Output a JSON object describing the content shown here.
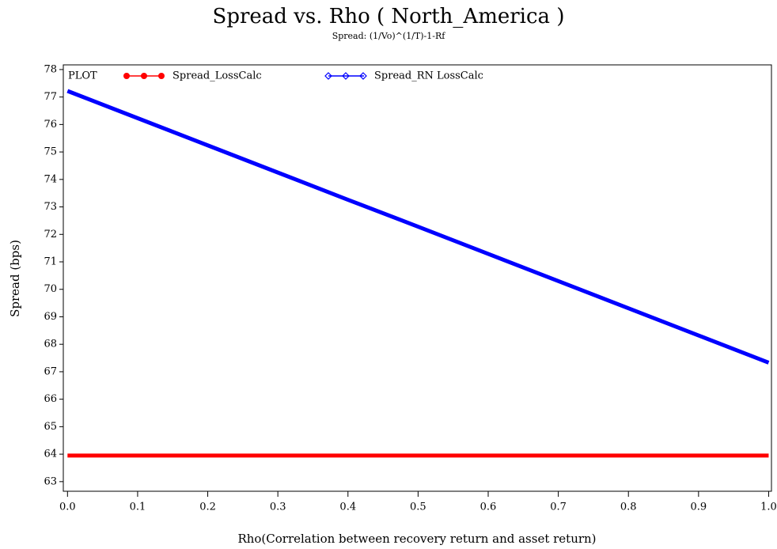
{
  "chart_data": {
    "type": "line",
    "title": "Spread vs. Rho ( North_America )",
    "subtitle": "Spread: (1/Vo)^(1/T)-1-Rf",
    "x_label": "Rho(Correlation between recovery return and asset return)",
    "y_label": "Spread (bps)",
    "legend_title": "PLOT",
    "x": [
      0,
      0.1,
      0.2,
      0.3,
      0.4,
      0.5,
      0.6,
      0.7,
      0.8,
      0.9,
      1
    ],
    "series": [
      {
        "name": "Spread_LossCalc",
        "color": "#ff0000",
        "marker": "circle",
        "values": [
          63.95,
          63.95,
          63.95,
          63.95,
          63.95,
          63.95,
          63.95,
          63.95,
          63.95,
          63.95,
          63.95
        ]
      },
      {
        "name": "Spread_RN LossCalc",
        "color": "#0000ff",
        "marker": "diamond",
        "values": [
          77.22,
          76.23,
          75.24,
          74.25,
          73.26,
          72.28,
          71.29,
          70.3,
          69.31,
          68.32,
          67.33
        ]
      }
    ],
    "xlim": [
      -0.006,
      1.004
    ],
    "xticks": [
      {
        "value": 0,
        "label": "0.0"
      },
      0.1,
      0.2,
      0.3,
      0.4,
      0.5,
      0.6,
      0.7,
      0.8,
      0.9,
      {
        "value": 1,
        "label": "1.0"
      }
    ],
    "ylim": [
      62.65,
      78.17
    ],
    "yticks": [
      63,
      64,
      65,
      66,
      67,
      68,
      69,
      70,
      71,
      72,
      73,
      74,
      75,
      76,
      77,
      78
    ],
    "grid": false
  }
}
